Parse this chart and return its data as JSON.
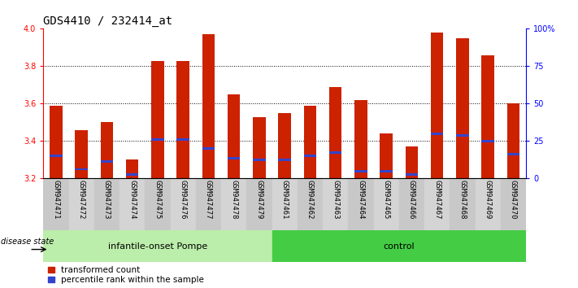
{
  "title": "GDS4410 / 232414_at",
  "samples": [
    "GSM947471",
    "GSM947472",
    "GSM947473",
    "GSM947474",
    "GSM947475",
    "GSM947476",
    "GSM947477",
    "GSM947478",
    "GSM947479",
    "GSM947461",
    "GSM947462",
    "GSM947463",
    "GSM947464",
    "GSM947465",
    "GSM947466",
    "GSM947467",
    "GSM947468",
    "GSM947469",
    "GSM947470"
  ],
  "bar_values": [
    3.59,
    3.46,
    3.5,
    3.3,
    3.83,
    3.83,
    3.97,
    3.65,
    3.53,
    3.55,
    3.59,
    3.69,
    3.62,
    3.44,
    3.37,
    3.98,
    3.95,
    3.86,
    3.6
  ],
  "blue_markers": [
    3.32,
    3.25,
    3.29,
    3.22,
    3.41,
    3.41,
    3.36,
    3.31,
    3.3,
    3.3,
    3.32,
    3.34,
    3.24,
    3.24,
    3.22,
    3.44,
    3.43,
    3.4,
    3.33
  ],
  "ymin": 3.2,
  "ymax": 4.0,
  "yticks": [
    3.2,
    3.4,
    3.6,
    3.8,
    4.0
  ],
  "right_yticks": [
    0,
    25,
    50,
    75,
    100
  ],
  "right_ylabels": [
    "0",
    "25",
    "50",
    "75",
    "100%"
  ],
  "bar_color": "#CC2200",
  "blue_color": "#3344CC",
  "group1_label": "infantile-onset Pompe",
  "group2_label": "control",
  "group1_count": 9,
  "group2_count": 10,
  "disease_state_label": "disease state",
  "group1_bg": "#BBEEAA",
  "group2_bg": "#44CC44",
  "xlabel_bg": "#CCCCCC",
  "legend_red_label": "transformed count",
  "legend_blue_label": "percentile rank within the sample",
  "title_fontsize": 10,
  "tick_fontsize": 7,
  "xlabel_fontsize": 6.5,
  "group_fontsize": 8,
  "legend_fontsize": 7.5
}
